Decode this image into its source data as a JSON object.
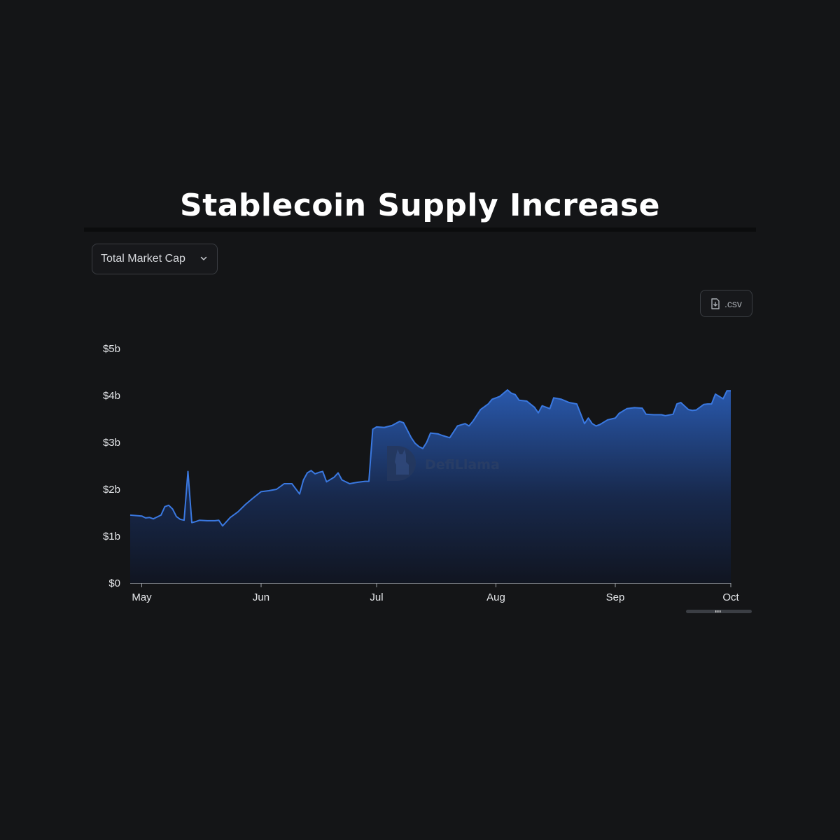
{
  "header": {
    "title": "Stablecoin Supply Increase"
  },
  "controls": {
    "metric_select": {
      "value": "Total Market Cap",
      "icon": "chevron-down-icon"
    },
    "csv_button": {
      "label": ".csv",
      "icon": "file-download-icon"
    }
  },
  "watermark": {
    "text": "DefiLlama",
    "icon": "llama-logo-icon"
  },
  "colors": {
    "background": "#141517",
    "line": "#3a78e0",
    "fill_top": "#2a5cb4",
    "fill_bottom": "#101522"
  },
  "chart_data": {
    "type": "area",
    "title": "",
    "xlabel": "",
    "ylabel": "",
    "x_ticks": [
      "May",
      "Jun",
      "Jul",
      "Aug",
      "Sep",
      "Oct"
    ],
    "x_range": [
      "2023-04-28",
      "2023-10-01"
    ],
    "y_ticks": [
      "$0",
      "$1b",
      "$2b",
      "$3b",
      "$4b",
      "$5b"
    ],
    "ylim": [
      0,
      5
    ],
    "y_unit": "$b",
    "grid": false,
    "series": [
      {
        "points": [
          [
            "2023-04-28",
            1.45
          ],
          [
            "2023-05-01",
            1.43
          ],
          [
            "2023-05-02",
            1.39
          ],
          [
            "2023-05-03",
            1.4
          ],
          [
            "2023-05-04",
            1.37
          ],
          [
            "2023-05-06",
            1.45
          ],
          [
            "2023-05-07",
            1.63
          ],
          [
            "2023-05-08",
            1.66
          ],
          [
            "2023-05-09",
            1.58
          ],
          [
            "2023-05-10",
            1.42
          ],
          [
            "2023-05-11",
            1.36
          ],
          [
            "2023-05-12",
            1.34
          ],
          [
            "2023-05-13",
            2.38
          ],
          [
            "2023-05-14",
            1.29
          ],
          [
            "2023-05-15",
            1.31
          ],
          [
            "2023-05-16",
            1.34
          ],
          [
            "2023-05-18",
            1.33
          ],
          [
            "2023-05-20",
            1.33
          ],
          [
            "2023-05-21",
            1.34
          ],
          [
            "2023-05-22",
            1.22
          ],
          [
            "2023-05-24",
            1.4
          ],
          [
            "2023-05-26",
            1.52
          ],
          [
            "2023-05-28",
            1.68
          ],
          [
            "2023-05-30",
            1.82
          ],
          [
            "2023-06-01",
            1.95
          ],
          [
            "2023-06-03",
            1.97
          ],
          [
            "2023-06-05",
            2.0
          ],
          [
            "2023-06-07",
            2.12
          ],
          [
            "2023-06-09",
            2.12
          ],
          [
            "2023-06-11",
            1.9
          ],
          [
            "2023-06-12",
            2.2
          ],
          [
            "2023-06-13",
            2.35
          ],
          [
            "2023-06-14",
            2.4
          ],
          [
            "2023-06-15",
            2.33
          ],
          [
            "2023-06-16",
            2.36
          ],
          [
            "2023-06-17",
            2.38
          ],
          [
            "2023-06-18",
            2.16
          ],
          [
            "2023-06-20",
            2.26
          ],
          [
            "2023-06-21",
            2.35
          ],
          [
            "2023-06-22",
            2.2
          ],
          [
            "2023-06-24",
            2.12
          ],
          [
            "2023-06-26",
            2.15
          ],
          [
            "2023-06-28",
            2.17
          ],
          [
            "2023-06-29",
            2.17
          ],
          [
            "2023-06-30",
            3.28
          ],
          [
            "2023-07-01",
            3.33
          ],
          [
            "2023-07-03",
            3.32
          ],
          [
            "2023-07-05",
            3.36
          ],
          [
            "2023-07-07",
            3.45
          ],
          [
            "2023-07-08",
            3.42
          ],
          [
            "2023-07-10",
            3.1
          ],
          [
            "2023-07-11",
            2.98
          ],
          [
            "2023-07-12",
            2.91
          ],
          [
            "2023-07-13",
            2.87
          ],
          [
            "2023-07-14",
            3.0
          ],
          [
            "2023-07-15",
            3.2
          ],
          [
            "2023-07-17",
            3.18
          ],
          [
            "2023-07-18",
            3.15
          ],
          [
            "2023-07-20",
            3.1
          ],
          [
            "2023-07-22",
            3.35
          ],
          [
            "2023-07-24",
            3.4
          ],
          [
            "2023-07-25",
            3.35
          ],
          [
            "2023-07-26",
            3.45
          ],
          [
            "2023-07-28",
            3.7
          ],
          [
            "2023-07-30",
            3.82
          ],
          [
            "2023-07-31",
            3.92
          ],
          [
            "2023-08-02",
            3.98
          ],
          [
            "2023-08-03",
            4.05
          ],
          [
            "2023-08-04",
            4.12
          ],
          [
            "2023-08-05",
            4.05
          ],
          [
            "2023-08-06",
            4.02
          ],
          [
            "2023-08-07",
            3.9
          ],
          [
            "2023-08-09",
            3.88
          ],
          [
            "2023-08-11",
            3.75
          ],
          [
            "2023-08-12",
            3.63
          ],
          [
            "2023-08-13",
            3.78
          ],
          [
            "2023-08-15",
            3.72
          ],
          [
            "2023-08-16",
            3.95
          ],
          [
            "2023-08-18",
            3.92
          ],
          [
            "2023-08-20",
            3.85
          ],
          [
            "2023-08-22",
            3.82
          ],
          [
            "2023-08-24",
            3.4
          ],
          [
            "2023-08-25",
            3.52
          ],
          [
            "2023-08-26",
            3.4
          ],
          [
            "2023-08-27",
            3.35
          ],
          [
            "2023-08-28",
            3.38
          ],
          [
            "2023-08-30",
            3.48
          ],
          [
            "2023-08-31",
            3.5
          ],
          [
            "2023-09-01",
            3.52
          ],
          [
            "2023-09-02",
            3.62
          ],
          [
            "2023-09-04",
            3.72
          ],
          [
            "2023-09-06",
            3.74
          ],
          [
            "2023-09-08",
            3.73
          ],
          [
            "2023-09-09",
            3.6
          ],
          [
            "2023-09-11",
            3.59
          ],
          [
            "2023-09-13",
            3.59
          ],
          [
            "2023-09-14",
            3.57
          ],
          [
            "2023-09-16",
            3.6
          ],
          [
            "2023-09-17",
            3.82
          ],
          [
            "2023-09-18",
            3.85
          ],
          [
            "2023-09-20",
            3.7
          ],
          [
            "2023-09-21",
            3.68
          ],
          [
            "2023-09-22",
            3.69
          ],
          [
            "2023-09-24",
            3.81
          ],
          [
            "2023-09-25",
            3.82
          ],
          [
            "2023-09-26",
            3.82
          ],
          [
            "2023-09-27",
            4.03
          ],
          [
            "2023-09-28",
            3.98
          ],
          [
            "2023-09-29",
            3.93
          ],
          [
            "2023-09-30",
            4.1
          ],
          [
            "2023-10-01",
            4.1
          ]
        ]
      }
    ]
  }
}
